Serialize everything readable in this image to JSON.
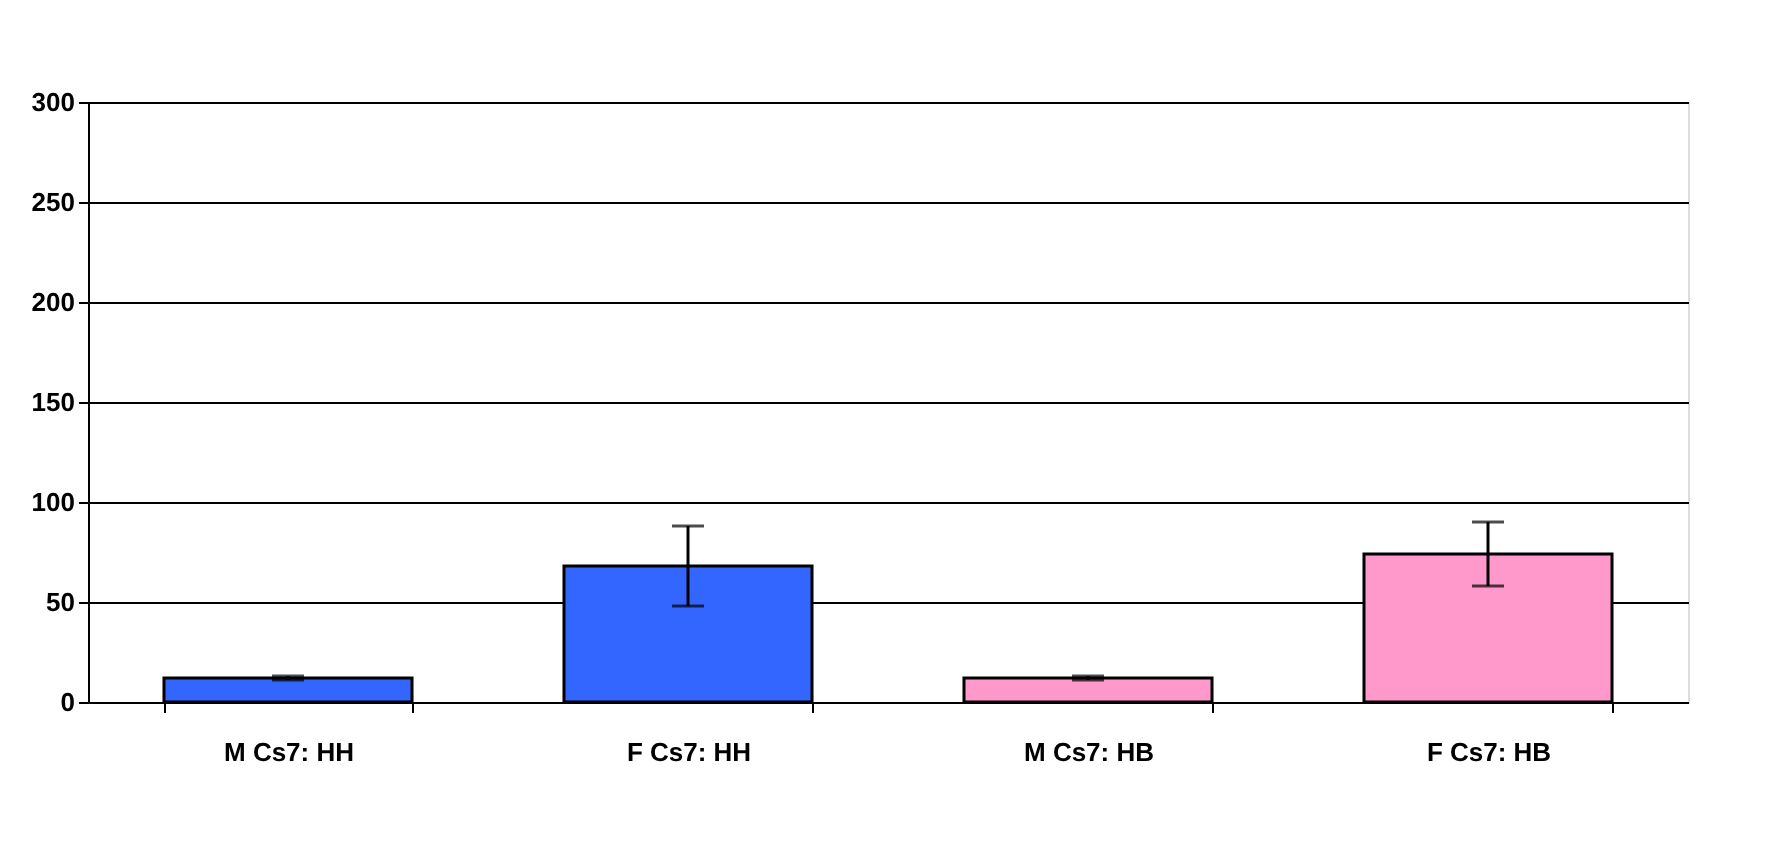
{
  "chart_data": {
    "type": "bar",
    "categories": [
      "M Cs7: HH",
      "F Cs7: HH",
      "M Cs7: HB",
      "F Cs7: HB"
    ],
    "values": [
      12,
      68,
      12,
      74
    ],
    "errors": [
      1,
      20,
      1,
      16
    ],
    "colors": [
      "#3366ff",
      "#3366ff",
      "#ff99cc",
      "#ff99cc"
    ],
    "ylim": [
      0,
      300
    ],
    "yticks": [
      0,
      50,
      100,
      150,
      200,
      250,
      300
    ],
    "grid": "y"
  }
}
